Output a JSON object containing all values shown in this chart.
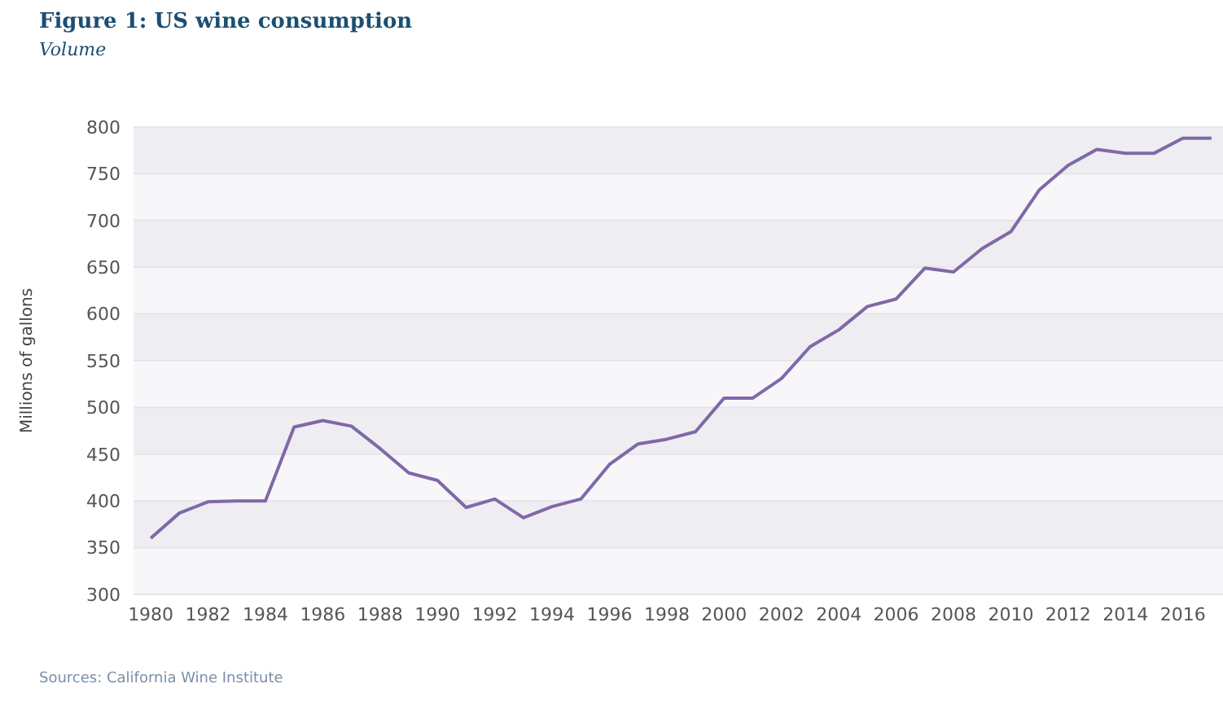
{
  "chart_data": {
    "type": "line",
    "title": "Figure 1: US wine consumption",
    "subtitle": "Volume",
    "ylabel": "Millions of gallons",
    "x": [
      1980,
      1981,
      1982,
      1983,
      1984,
      1985,
      1986,
      1987,
      1988,
      1989,
      1990,
      1991,
      1992,
      1993,
      1994,
      1995,
      1996,
      1997,
      1998,
      1999,
      2000,
      2001,
      2002,
      2003,
      2004,
      2005,
      2006,
      2007,
      2008,
      2009,
      2010,
      2011,
      2012,
      2013,
      2014,
      2015,
      2016,
      2017
    ],
    "series": [
      {
        "color": "#8068a8",
        "values": [
          360,
          387,
          399,
          400,
          400,
          479,
          486,
          480,
          456,
          430,
          422,
          393,
          402,
          382,
          394,
          402,
          439,
          461,
          466,
          474,
          510,
          510,
          531,
          565,
          583,
          608,
          616,
          649,
          645,
          670,
          688,
          733,
          759,
          776,
          772,
          772,
          788,
          788
        ]
      }
    ],
    "xlim": [
      1979.4,
      2017.4
    ],
    "xticks": [
      1980,
      1982,
      1984,
      1986,
      1988,
      1990,
      1992,
      1994,
      1996,
      1998,
      2000,
      2002,
      2004,
      2006,
      2008,
      2010,
      2012,
      2014,
      2016
    ],
    "ylim": [
      300,
      800
    ],
    "yticks": [
      300,
      350,
      400,
      450,
      500,
      550,
      600,
      650,
      700,
      750,
      800
    ],
    "grid": "y",
    "marker": "none",
    "line_style": "solid",
    "legend": false,
    "annotations": [
      "Sources: California Wine Institute"
    ]
  }
}
